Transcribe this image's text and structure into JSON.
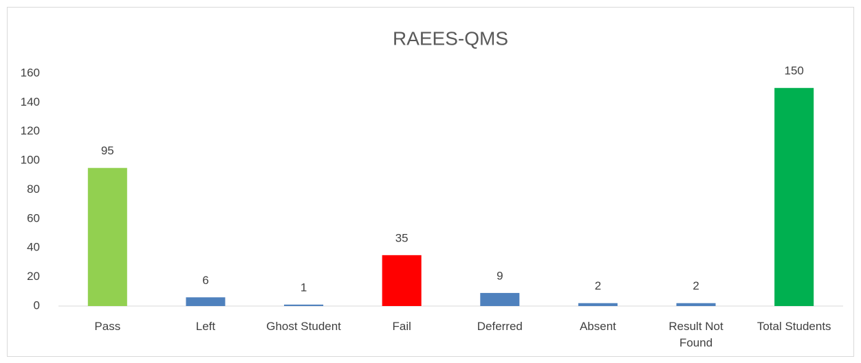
{
  "chart_data": {
    "type": "bar",
    "title": "RAEES-QMS",
    "categories": [
      "Pass",
      "Left",
      "Ghost Student",
      "Fail",
      "Deferred",
      "Absent",
      "Result Not Found",
      "Total Students"
    ],
    "values": [
      95,
      6,
      1,
      35,
      9,
      2,
      2,
      150
    ],
    "colors": [
      "#92d050",
      "#4f81bd",
      "#4f81bd",
      "#ff0000",
      "#4f81bd",
      "#4f81bd",
      "#4f81bd",
      "#00b050"
    ],
    "ylim": [
      0,
      160
    ],
    "yticks": [
      0,
      20,
      40,
      60,
      80,
      100,
      120,
      140,
      160
    ],
    "grid": false
  }
}
